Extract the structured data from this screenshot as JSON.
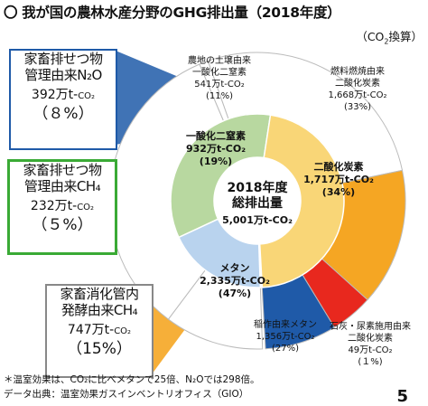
{
  "page": {
    "title": "〇 我が国の農林水産分野のGHG排出量（2018年度）",
    "unit_prefix": "（CO",
    "unit_sub": "2",
    "unit_suffix": "換算）",
    "footnote1": "＊温室効果は、CO₂に比べメタンで25倍、N₂Oでは298倍。",
    "footnote2": "データ出典：温室効果ガスインベントリオフィス（GIO）",
    "page_number": "5"
  },
  "chart_data": {
    "type": "pie",
    "center": {
      "line1": "2018年度",
      "line2": "総排出量",
      "line3": "5,001万t-CO₂"
    },
    "total": 5001,
    "inner": [
      {
        "name": "一酸化二窒素",
        "value_text": "932万t-CO₂",
        "pct_text": "(19%)",
        "value": 932,
        "color": "#b9d3ee"
      },
      {
        "name": "二酸化炭素",
        "value_text": "1,717万t-CO₂",
        "pct_text": "(34%)",
        "value": 1717,
        "color": "#b8d8a0"
      },
      {
        "name": "メタン",
        "value_text": "2,335万t-CO₂",
        "pct_text": "(47%)",
        "value": 2335,
        "color": "#f9d677"
      }
    ],
    "outer": [
      {
        "key": "soil",
        "name_lines": [
          "農地の土壌由来",
          "一酸化二窒素"
        ],
        "value_text": "541万t-CO₂",
        "pct_text": "(11%)",
        "value": 541,
        "color": "#ffffff"
      },
      {
        "key": "fuel",
        "name_lines": [
          "燃料燃焼由来",
          "二酸化炭素"
        ],
        "value_text": "1,668万t-CO₂",
        "pct_text": "(33%)",
        "value": 1668,
        "color": "#ffffff"
      },
      {
        "key": "lime",
        "name_lines": [
          "石灰・尿素施用由来",
          "二酸化炭素"
        ],
        "value_text": "49万t-CO₂",
        "pct_text": "(１%)",
        "value": 49,
        "color": "#ffffff"
      },
      {
        "key": "rice",
        "name_lines": [
          "稲作由来メタン"
        ],
        "value_text": "1,356万t-CO₂",
        "pct_text": "(27%)",
        "value": 1356,
        "color": "#ffffff"
      },
      {
        "key": "enteric",
        "value": 747,
        "color": "#f5a623"
      },
      {
        "key": "manure_ch4",
        "value": 232,
        "color": "#e8281e"
      },
      {
        "key": "manure_n2o",
        "value": 392,
        "color": "#1f5aa8"
      }
    ]
  },
  "callouts": {
    "n2o": {
      "line1": "家畜排せつ物",
      "line2": "管理由来N₂O",
      "value": "392万t-",
      "unit": "CO₂",
      "pct": "（８%）"
    },
    "ch4": {
      "line1": "家畜排せつ物",
      "line2": "管理由来CH₄",
      "value": "232万t-",
      "unit": "CO₂",
      "pct": "（５%）"
    },
    "enteric": {
      "line1": "家畜消化管内",
      "line2": "発酵由来CH₄",
      "value": "747万t-",
      "unit": "CO₂",
      "pct": "（15%）"
    }
  }
}
